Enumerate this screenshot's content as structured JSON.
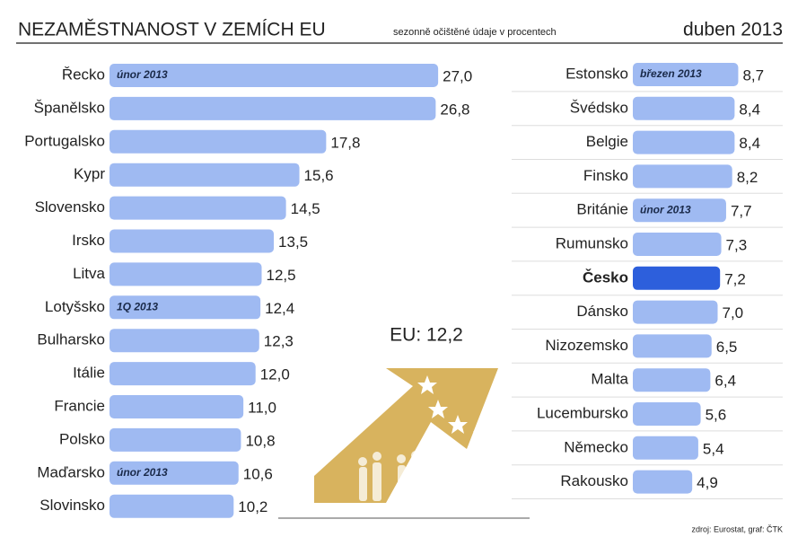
{
  "header": {
    "title": "NEZAMĚSTNANOST V ZEMÍCH EU",
    "subtitle": "sezonně očištěné údaje v procentech",
    "date": "duben 2013"
  },
  "annotation": "EU: 12,2",
  "source": "zdroj: Eurostat, graf: ČTK",
  "chart_data": [
    {
      "type": "bar",
      "orientation": "horizontal",
      "color": "#9fbaf2",
      "categories": [
        "Řecko",
        "Španělsko",
        "Portugalsko",
        "Kypr",
        "Slovensko",
        "Irsko",
        "Litva",
        "Lotyšsko",
        "Bulharsko",
        "Itálie",
        "Francie",
        "Polsko",
        "Maďarsko",
        "Slovinsko"
      ],
      "values": [
        27.0,
        26.8,
        17.8,
        15.6,
        14.5,
        13.5,
        12.5,
        12.4,
        12.3,
        12.0,
        11.0,
        10.8,
        10.6,
        10.2
      ],
      "value_labels": [
        "27,0",
        "26,8",
        "17,8",
        "15,6",
        "14,5",
        "13,5",
        "12,5",
        "12,4",
        "12,3",
        "12,0",
        "11,0",
        "10,8",
        "10,6",
        "10,2"
      ],
      "notes": [
        {
          "category": "Řecko",
          "text": "únor 2013"
        },
        {
          "category": "Lotyšsko",
          "text": "1Q 2013"
        },
        {
          "category": "Maďarsko",
          "text": "únor 2013"
        }
      ]
    },
    {
      "type": "bar",
      "orientation": "horizontal",
      "color": "#9fbaf2",
      "highlight": "Česko",
      "highlight_color": "#2d5fdc",
      "categories": [
        "Estonsko",
        "Švédsko",
        "Belgie",
        "Finsko",
        "Británie",
        "Rumunsko",
        "Česko",
        "Dánsko",
        "Nizozemsko",
        "Malta",
        "Lucembursko",
        "Německo",
        "Rakousko"
      ],
      "values": [
        8.7,
        8.4,
        8.4,
        8.2,
        7.7,
        7.3,
        7.2,
        7.0,
        6.5,
        6.4,
        5.6,
        5.4,
        4.9
      ],
      "value_labels": [
        "8,7",
        "8,4",
        "8,4",
        "8,2",
        "7,7",
        "7,3",
        "7,2",
        "7,0",
        "6,5",
        "6,4",
        "5,6",
        "5,4",
        "4,9"
      ],
      "notes": [
        {
          "category": "Estonsko",
          "text": "březen 2013"
        },
        {
          "category": "Británie",
          "text": "únor 2013"
        }
      ]
    }
  ]
}
